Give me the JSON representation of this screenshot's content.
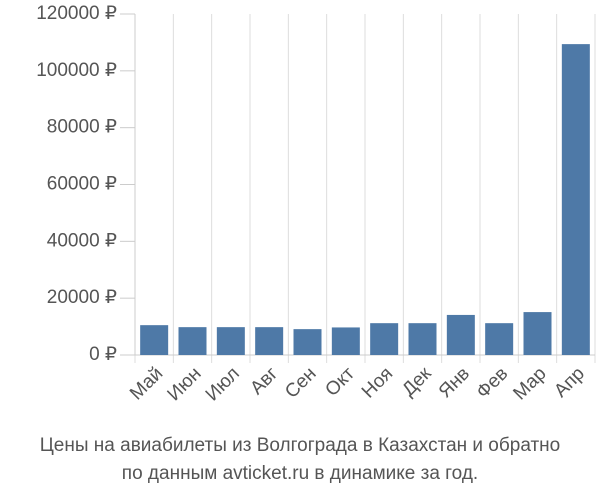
{
  "chart_data": {
    "type": "bar",
    "title": "Цены на авиабилеты из Волгограда в Казахстан и обратно",
    "subtitle": "по данным avticket.ru в динамике за год.",
    "categories": [
      "Май",
      "Июн",
      "Июл",
      "Авг",
      "Сен",
      "Окт",
      "Ноя",
      "Дек",
      "Янв",
      "Фев",
      "Мар",
      "Апр"
    ],
    "values": [
      10500,
      9800,
      9800,
      9800,
      9100,
      9700,
      11200,
      11200,
      14100,
      11200,
      15100,
      109400
    ],
    "color": "#4e79a7",
    "ylim": [
      0,
      120000
    ],
    "yticks": [
      {
        "value": 0,
        "label": "0 ₽"
      },
      {
        "value": 20000,
        "label": "20000 ₽"
      },
      {
        "value": 40000,
        "label": "40000 ₽"
      },
      {
        "value": 60000,
        "label": "60000 ₽"
      },
      {
        "value": 80000,
        "label": "80000 ₽"
      },
      {
        "value": 100000,
        "label": "100000 ₽"
      },
      {
        "value": 120000,
        "label": "120000 ₽"
      }
    ],
    "grid": true
  }
}
